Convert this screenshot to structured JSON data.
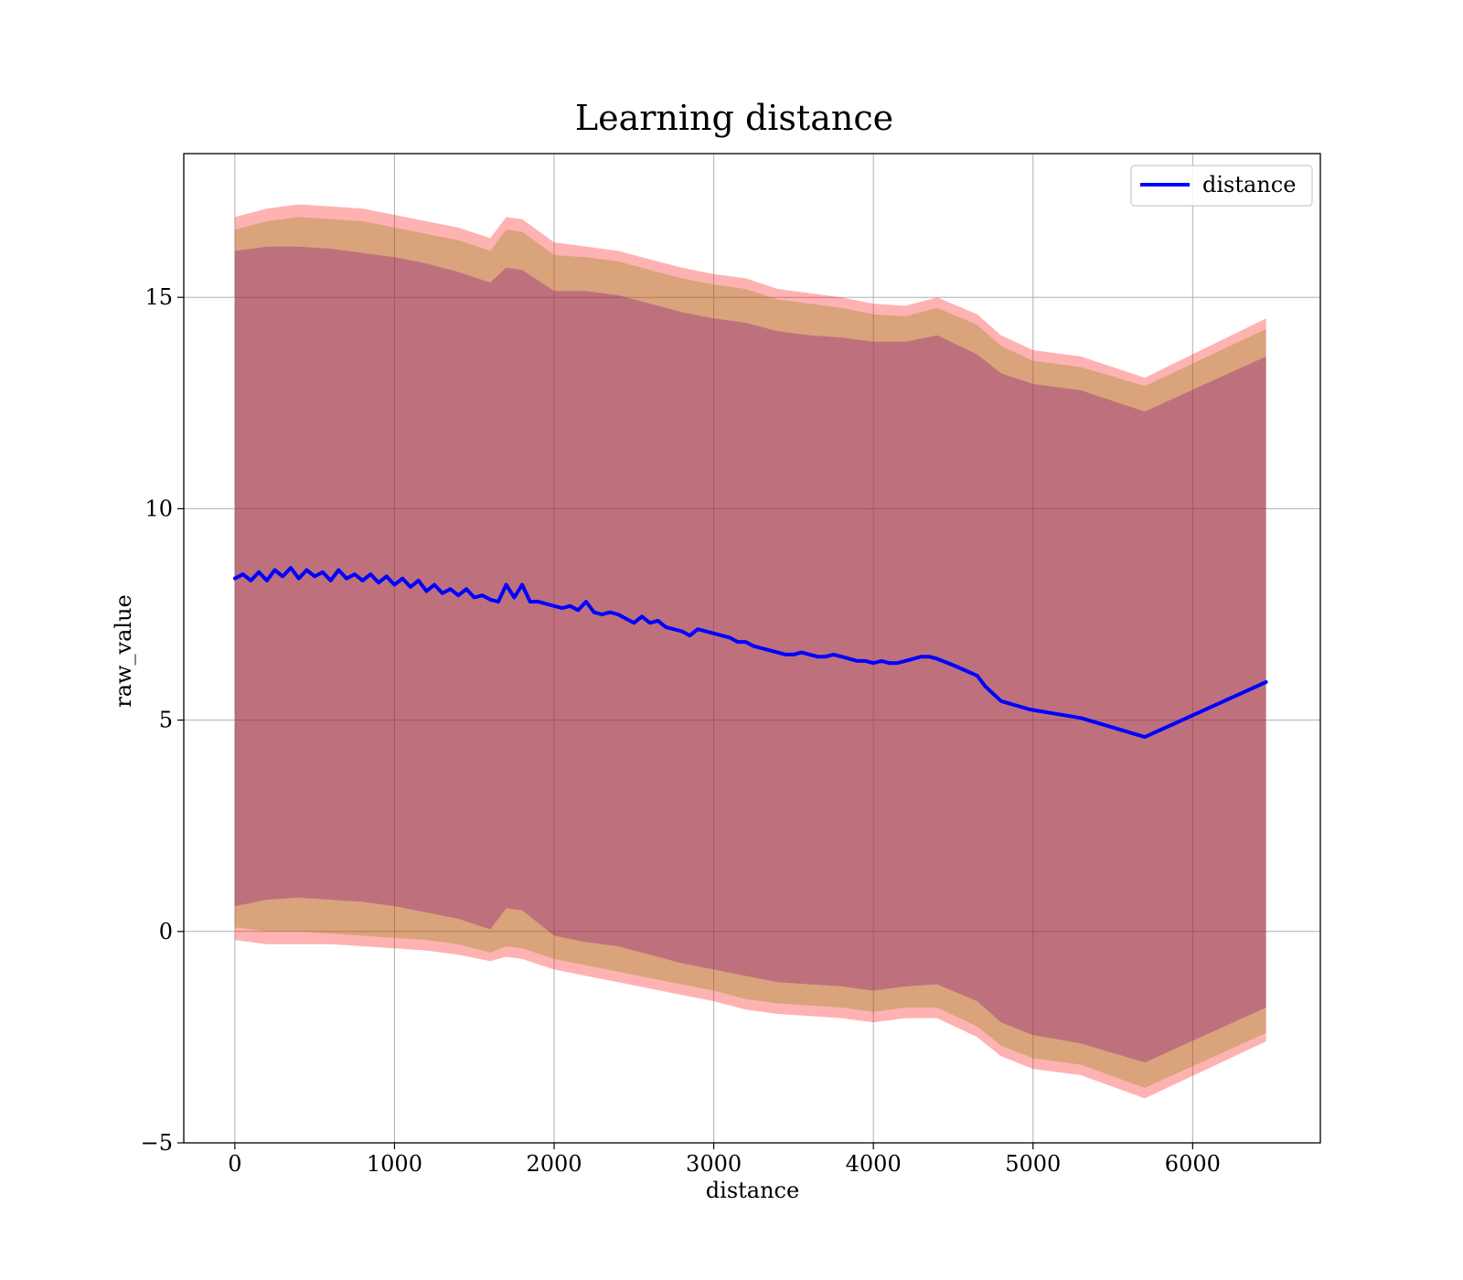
{
  "chart_data": {
    "type": "line",
    "title": "Learning distance",
    "xlabel": "distance",
    "ylabel": "raw_value",
    "xlim": [
      -320,
      6800
    ],
    "ylim": [
      -5,
      18.4
    ],
    "xticks": [
      0,
      1000,
      2000,
      3000,
      4000,
      5000,
      6000
    ],
    "xtick_labels": [
      "0",
      "1000",
      "2000",
      "3000",
      "4000",
      "5000",
      "6000"
    ],
    "yticks": [
      -5,
      0,
      5,
      10,
      15
    ],
    "ytick_labels": [
      "−5",
      "0",
      "5",
      "10",
      "15"
    ],
    "grid": true,
    "legend_position": "upper right",
    "series": [
      {
        "name": "distance",
        "color": "#0000ff",
        "x": [
          0,
          50,
          100,
          150,
          200,
          250,
          300,
          350,
          400,
          450,
          500,
          550,
          600,
          650,
          700,
          750,
          800,
          850,
          900,
          950,
          1000,
          1050,
          1100,
          1150,
          1200,
          1250,
          1300,
          1350,
          1400,
          1450,
          1500,
          1550,
          1600,
          1650,
          1700,
          1750,
          1800,
          1850,
          1900,
          1950,
          2000,
          2050,
          2100,
          2150,
          2200,
          2250,
          2300,
          2350,
          2400,
          2450,
          2500,
          2550,
          2600,
          2650,
          2700,
          2750,
          2800,
          2850,
          2900,
          2950,
          3000,
          3050,
          3100,
          3150,
          3200,
          3250,
          3300,
          3350,
          3400,
          3450,
          3500,
          3550,
          3600,
          3650,
          3700,
          3750,
          3800,
          3850,
          3900,
          3950,
          4000,
          4050,
          4100,
          4150,
          4200,
          4250,
          4300,
          4350,
          4400,
          4500,
          4650,
          4700,
          4800,
          4980,
          5300,
          5700,
          6460
        ],
        "y": [
          8.35,
          8.45,
          8.3,
          8.5,
          8.3,
          8.55,
          8.4,
          8.6,
          8.35,
          8.55,
          8.4,
          8.5,
          8.3,
          8.55,
          8.35,
          8.45,
          8.3,
          8.45,
          8.25,
          8.4,
          8.2,
          8.35,
          8.15,
          8.3,
          8.05,
          8.2,
          8.0,
          8.1,
          7.95,
          8.1,
          7.9,
          7.95,
          7.85,
          7.8,
          8.2,
          7.9,
          8.2,
          7.8,
          7.8,
          7.75,
          7.7,
          7.65,
          7.7,
          7.6,
          7.8,
          7.55,
          7.5,
          7.55,
          7.5,
          7.4,
          7.3,
          7.45,
          7.3,
          7.35,
          7.2,
          7.15,
          7.1,
          7.0,
          7.15,
          7.1,
          7.05,
          7.0,
          6.95,
          6.85,
          6.85,
          6.75,
          6.7,
          6.65,
          6.6,
          6.55,
          6.55,
          6.6,
          6.55,
          6.5,
          6.5,
          6.55,
          6.5,
          6.45,
          6.4,
          6.4,
          6.35,
          6.4,
          6.35,
          6.35,
          6.4,
          6.45,
          6.5,
          6.5,
          6.45,
          6.3,
          6.05,
          5.8,
          5.45,
          5.25,
          5.05,
          4.6,
          5.9
        ]
      }
    ],
    "bands": [
      {
        "color": "#ff0000",
        "opacity": 0.3,
        "x": [
          0,
          200,
          400,
          600,
          800,
          1000,
          1200,
          1400,
          1600,
          1700,
          1800,
          2000,
          2200,
          2400,
          2600,
          2800,
          3000,
          3200,
          3400,
          3600,
          3800,
          4000,
          4200,
          4400,
          4650,
          4800,
          5000,
          5300,
          5700,
          6460
        ],
        "lower": [
          -0.2,
          -0.3,
          -0.3,
          -0.3,
          -0.35,
          -0.4,
          -0.45,
          -0.55,
          -0.7,
          -0.6,
          -0.65,
          -0.9,
          -1.05,
          -1.2,
          -1.35,
          -1.5,
          -1.65,
          -1.85,
          -1.95,
          -2.0,
          -2.05,
          -2.15,
          -2.05,
          -2.05,
          -2.5,
          -2.95,
          -3.25,
          -3.4,
          -3.95,
          -2.6
        ],
        "upper": [
          16.9,
          17.1,
          17.2,
          17.15,
          17.1,
          16.95,
          16.8,
          16.65,
          16.4,
          16.9,
          16.85,
          16.3,
          16.2,
          16.1,
          15.9,
          15.7,
          15.55,
          15.45,
          15.2,
          15.1,
          15.0,
          14.85,
          14.8,
          15.0,
          14.6,
          14.1,
          13.75,
          13.6,
          13.1,
          14.5
        ]
      },
      {
        "color": "#808000",
        "opacity": 0.3,
        "x": [
          0,
          200,
          400,
          600,
          800,
          1000,
          1200,
          1400,
          1600,
          1700,
          1800,
          2000,
          2200,
          2400,
          2600,
          2800,
          3000,
          3200,
          3400,
          3600,
          3800,
          4000,
          4200,
          4400,
          4650,
          4800,
          5000,
          5300,
          5700,
          6460
        ],
        "lower": [
          0.1,
          0.0,
          0.0,
          -0.05,
          -0.1,
          -0.15,
          -0.2,
          -0.3,
          -0.5,
          -0.35,
          -0.4,
          -0.65,
          -0.8,
          -0.95,
          -1.1,
          -1.25,
          -1.4,
          -1.6,
          -1.7,
          -1.75,
          -1.8,
          -1.9,
          -1.8,
          -1.8,
          -2.25,
          -2.7,
          -3.0,
          -3.15,
          -3.7,
          -2.4
        ],
        "upper": [
          16.6,
          16.8,
          16.9,
          16.85,
          16.8,
          16.65,
          16.5,
          16.35,
          16.1,
          16.6,
          16.55,
          16.0,
          15.95,
          15.85,
          15.65,
          15.45,
          15.3,
          15.2,
          14.95,
          14.85,
          14.75,
          14.6,
          14.55,
          14.75,
          14.35,
          13.85,
          13.5,
          13.35,
          12.9,
          14.25
        ]
      },
      {
        "color": "#800080",
        "opacity": 0.3,
        "x": [
          0,
          200,
          400,
          600,
          800,
          1000,
          1200,
          1400,
          1600,
          1700,
          1800,
          2000,
          2200,
          2400,
          2600,
          2800,
          3000,
          3200,
          3400,
          3600,
          3800,
          4000,
          4200,
          4400,
          4650,
          4800,
          5000,
          5300,
          5700,
          6460
        ],
        "lower": [
          0.6,
          0.75,
          0.8,
          0.75,
          0.7,
          0.6,
          0.45,
          0.3,
          0.05,
          0.55,
          0.5,
          -0.1,
          -0.25,
          -0.35,
          -0.55,
          -0.75,
          -0.9,
          -1.05,
          -1.2,
          -1.25,
          -1.3,
          -1.4,
          -1.3,
          -1.25,
          -1.65,
          -2.15,
          -2.45,
          -2.65,
          -3.1,
          -1.8
        ],
        "upper": [
          16.1,
          16.2,
          16.2,
          16.15,
          16.05,
          15.95,
          15.8,
          15.6,
          15.35,
          15.7,
          15.65,
          15.15,
          15.15,
          15.05,
          14.85,
          14.65,
          14.5,
          14.4,
          14.2,
          14.1,
          14.05,
          13.95,
          13.95,
          14.1,
          13.65,
          13.2,
          12.95,
          12.8,
          12.3,
          13.6
        ]
      }
    ]
  }
}
